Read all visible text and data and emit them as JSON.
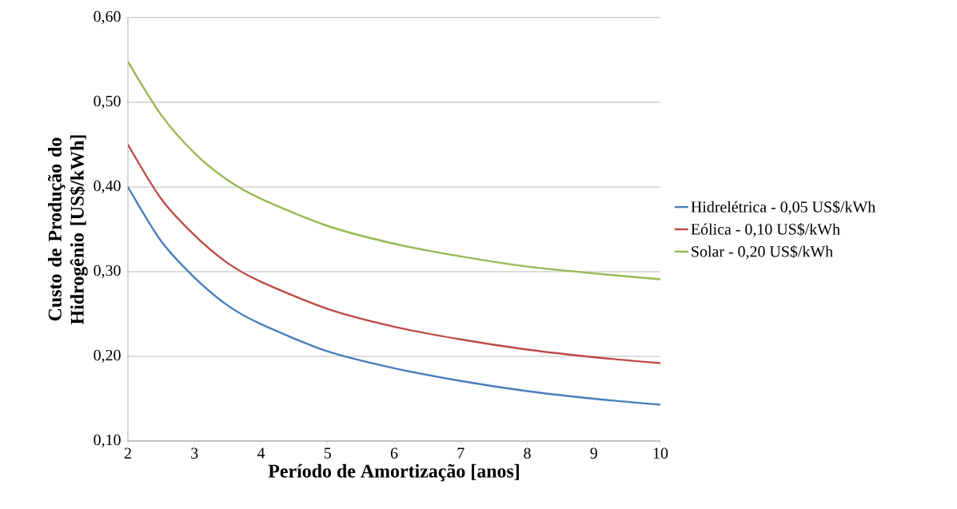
{
  "chart_data": {
    "type": "line",
    "xlabel": "Período de Amortização  [anos]",
    "ylabel": "Custo de Produção do Hidrogênio [US$/kWh]",
    "x": [
      2,
      2.5,
      3,
      3.5,
      4,
      5,
      6,
      7,
      8,
      9,
      10
    ],
    "series": [
      {
        "name": "Hidrelétrica - 0,05 US$/kWh",
        "color": "#4a7ebb",
        "values": [
          0.4,
          0.336,
          0.293,
          0.26,
          0.238,
          0.206,
          0.186,
          0.171,
          0.159,
          0.15,
          0.143
        ]
      },
      {
        "name": "Eólica - 0,10 US$/kWh",
        "color": "#be4b48",
        "values": [
          0.45,
          0.386,
          0.343,
          0.31,
          0.288,
          0.256,
          0.235,
          0.22,
          0.208,
          0.199,
          0.192
        ]
      },
      {
        "name": "Solar - 0,20 US$/kWh",
        "color": "#98b954",
        "values": [
          0.548,
          0.485,
          0.44,
          0.408,
          0.386,
          0.354,
          0.333,
          0.318,
          0.306,
          0.298,
          0.291
        ]
      }
    ],
    "xlim": [
      2,
      10
    ],
    "ylim": [
      0.1,
      0.6
    ],
    "xticks": [
      2,
      3,
      4,
      5,
      6,
      7,
      8,
      9,
      10
    ],
    "yticks": [
      {
        "value": 0.1,
        "label": "0,10"
      },
      {
        "value": 0.2,
        "label": "0,20"
      },
      {
        "value": 0.3,
        "label": "0,30"
      },
      {
        "value": 0.4,
        "label": "0,40"
      },
      {
        "value": 0.5,
        "label": "0,50"
      },
      {
        "value": 0.6,
        "label": "0,60"
      }
    ],
    "grid": "y",
    "legend": "right",
    "line_style": "solid"
  }
}
